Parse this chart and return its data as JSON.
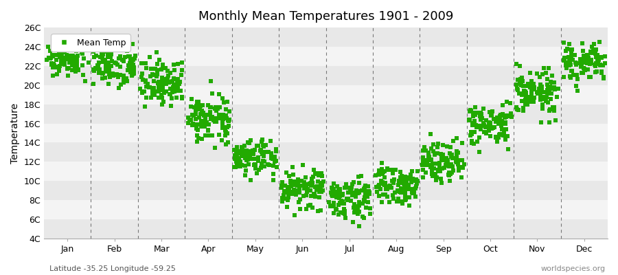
{
  "title": "Monthly Mean Temperatures 1901 - 2009",
  "ylabel": "Temperature",
  "xlabel_labels": [
    "Jan",
    "Feb",
    "Mar",
    "Apr",
    "May",
    "Jun",
    "Jul",
    "Aug",
    "Sep",
    "Oct",
    "Nov",
    "Dec"
  ],
  "footnote_left": "Latitude -35.25 Longitude -59.25",
  "footnote_right": "worldspecies.org",
  "ytick_labels": [
    "4C",
    "6C",
    "8C",
    "10C",
    "12C",
    "14C",
    "16C",
    "18C",
    "20C",
    "22C",
    "24C",
    "26C"
  ],
  "ytick_values": [
    4,
    6,
    8,
    10,
    12,
    14,
    16,
    18,
    20,
    22,
    24,
    26
  ],
  "ylim": [
    4,
    26
  ],
  "marker_color": "#22aa00",
  "marker_size": 4,
  "background_color": "#ffffff",
  "band_color_dark": "#e8e8e8",
  "band_color_light": "#f4f4f4",
  "legend_label": "Mean Temp",
  "start_year": 1901,
  "end_year": 2009,
  "monthly_means": [
    22.8,
    22.2,
    20.3,
    16.5,
    12.5,
    9.2,
    8.2,
    9.5,
    12.2,
    15.8,
    19.2,
    22.3
  ],
  "monthly_stds": [
    0.9,
    1.1,
    1.2,
    1.1,
    1.0,
    1.0,
    1.0,
    1.0,
    1.0,
    1.1,
    1.2,
    1.0
  ]
}
